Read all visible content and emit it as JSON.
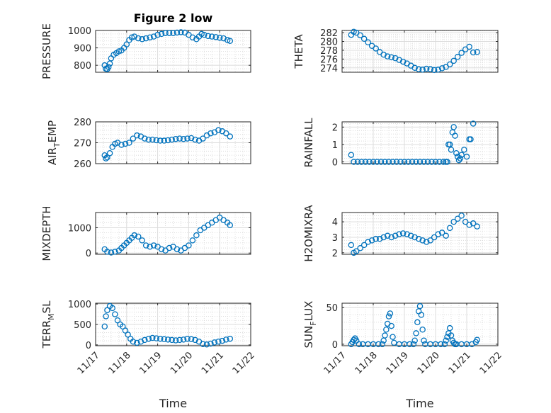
{
  "marker_color": "#0072BD",
  "figure_title": "Figure 2 low",
  "chart_data": [
    {
      "type": "scatter",
      "id": "pressure",
      "ylabel": "PRESSURE",
      "ylabel_sub": "",
      "title": "Figure 2 low",
      "ylim": [
        760,
        1000
      ],
      "yticks": [
        800,
        900,
        1000
      ],
      "xlim": [
        "11/17",
        "11/22"
      ],
      "xticks": [
        "11/17",
        "11/18",
        "11/19",
        "11/20",
        "11/21",
        "11/22"
      ],
      "xtick_labels_shown": false,
      "x": [
        "11/17 07:00",
        "11/17 08:00",
        "11/17 09:00",
        "11/17 10:00",
        "11/17 11:00",
        "11/17 12:00",
        "11/17 14:00",
        "11/17 16:00",
        "11/17 18:00",
        "11/17 20:00",
        "11/17 22:00",
        "11/18 00:00",
        "11/18 02:00",
        "11/18 04:00",
        "11/18 06:00",
        "11/18 09:00",
        "11/18 12:00",
        "11/18 15:00",
        "11/18 18:00",
        "11/18 21:00",
        "11/19 00:00",
        "11/19 03:00",
        "11/19 06:00",
        "11/19 09:00",
        "11/19 12:00",
        "11/19 15:00",
        "11/19 18:00",
        "11/19 21:00",
        "11/20 00:00",
        "11/20 03:00",
        "11/20 06:00",
        "11/20 08:00",
        "11/20 10:00",
        "11/20 12:00",
        "11/20 15:00",
        "11/20 18:00",
        "11/20 21:00",
        "11/21 00:00",
        "11/21 03:00",
        "11/21 06:00",
        "11/21 08:00"
      ],
      "y": [
        800,
        780,
        778,
        790,
        810,
        840,
        860,
        870,
        880,
        885,
        900,
        920,
        945,
        960,
        965,
        955,
        950,
        955,
        960,
        965,
        975,
        980,
        985,
        985,
        985,
        988,
        990,
        988,
        975,
        960,
        950,
        965,
        980,
        975,
        968,
        965,
        962,
        958,
        955,
        945,
        940
      ]
    },
    {
      "type": "scatter",
      "id": "theta",
      "ylabel": "THETA",
      "ylabel_sub": "",
      "ylim": [
        273,
        282.5
      ],
      "yticks": [
        274,
        276,
        278,
        280,
        282
      ],
      "xlim": [
        "11/17",
        "11/22"
      ],
      "xticks": [
        "11/17",
        "11/18",
        "11/19",
        "11/20",
        "11/21",
        "11/22"
      ],
      "xtick_labels_shown": false,
      "x": [
        "11/17 07:00",
        "11/17 09:00",
        "11/17 11:00",
        "11/17 14:00",
        "11/17 17:00",
        "11/17 20:00",
        "11/17 23:00",
        "11/18 02:00",
        "11/18 05:00",
        "11/18 08:00",
        "11/18 11:00",
        "11/18 14:00",
        "11/18 17:00",
        "11/18 20:00",
        "11/18 23:00",
        "11/19 02:00",
        "11/19 05:00",
        "11/19 08:00",
        "11/19 11:00",
        "11/19 14:00",
        "11/19 17:00",
        "11/19 20:00",
        "11/19 23:00",
        "11/20 02:00",
        "11/20 05:00",
        "11/20 08:00",
        "11/20 11:00",
        "11/20 14:00",
        "11/20 17:00",
        "11/20 20:00",
        "11/20 23:00",
        "11/21 02:00",
        "11/21 05:00",
        "11/21 08:00"
      ],
      "y": [
        281.5,
        282.2,
        282,
        281.4,
        280.6,
        279.8,
        279,
        278.4,
        277.6,
        277,
        276.6,
        276.4,
        276.2,
        275.8,
        275.4,
        275,
        274.5,
        274,
        273.7,
        273.6,
        273.8,
        273.7,
        273.5,
        273.6,
        273.9,
        274.2,
        274.8,
        275.6,
        276.5,
        277.4,
        278.2,
        278.8,
        277.5,
        277.6
      ]
    },
    {
      "type": "scatter",
      "id": "air_temp",
      "ylabel": "AIR",
      "ylabel_sub": "T",
      "ylabel_suffix": "EMP",
      "ylim": [
        260,
        280
      ],
      "yticks": [
        260,
        270,
        280
      ],
      "xlim": [
        "11/17",
        "11/22"
      ],
      "xticks": [
        "11/17",
        "11/18",
        "11/19",
        "11/20",
        "11/21",
        "11/22"
      ],
      "xtick_labels_shown": false,
      "x": [
        "11/17 07:00",
        "11/17 08:00",
        "11/17 09:00",
        "11/17 11:00",
        "11/17 13:00",
        "11/17 15:00",
        "11/17 17:00",
        "11/17 20:00",
        "11/17 23:00",
        "11/18 02:00",
        "11/18 05:00",
        "11/18 08:00",
        "11/18 11:00",
        "11/18 14:00",
        "11/18 17:00",
        "11/18 20:00",
        "11/18 23:00",
        "11/19 02:00",
        "11/19 05:00",
        "11/19 08:00",
        "11/19 11:00",
        "11/19 14:00",
        "11/19 17:00",
        "11/19 20:00",
        "11/19 23:00",
        "11/20 02:00",
        "11/20 05:00",
        "11/20 08:00",
        "11/20 11:00",
        "11/20 14:00",
        "11/20 17:00",
        "11/20 20:00",
        "11/20 23:00",
        "11/21 02:00",
        "11/21 05:00",
        "11/21 08:00"
      ],
      "y": [
        264,
        262.5,
        263,
        265,
        268,
        269.5,
        270,
        269,
        269.5,
        270,
        272,
        273.5,
        273,
        272,
        271.5,
        271.5,
        271.2,
        271,
        271,
        271.2,
        271.5,
        271.8,
        272,
        271.8,
        272,
        272.2,
        271.5,
        271,
        272,
        273.5,
        274.5,
        275,
        276,
        275.5,
        274.5,
        273
      ]
    },
    {
      "type": "scatter",
      "id": "rainfall",
      "ylabel": "RAINFALL",
      "ylabel_sub": "",
      "ylim": [
        -0.1,
        2.3
      ],
      "yticks": [
        0,
        1,
        2
      ],
      "xlim": [
        "11/17",
        "11/22"
      ],
      "xticks": [
        "11/17",
        "11/18",
        "11/19",
        "11/20",
        "11/21",
        "11/22"
      ],
      "xtick_labels_shown": false,
      "x": [
        "11/17 07:00",
        "11/17 09:00",
        "11/17 12:00",
        "11/17 15:00",
        "11/17 18:00",
        "11/17 21:00",
        "11/18 00:00",
        "11/18 03:00",
        "11/18 06:00",
        "11/18 09:00",
        "11/18 12:00",
        "11/18 15:00",
        "11/18 18:00",
        "11/18 21:00",
        "11/19 00:00",
        "11/19 03:00",
        "11/19 06:00",
        "11/19 09:00",
        "11/19 12:00",
        "11/19 15:00",
        "11/19 18:00",
        "11/19 21:00",
        "11/20 00:00",
        "11/20 03:00",
        "11/20 06:00",
        "11/20 08:00",
        "11/20 09:00",
        "11/20 10:00",
        "11/20 11:00",
        "11/20 12:00",
        "11/20 13:00",
        "11/20 14:00",
        "11/20 15:00",
        "11/20 16:00",
        "11/20 17:00",
        "11/20 18:00",
        "11/20 19:00",
        "11/20 20:00",
        "11/20 22:00",
        "11/21 00:00",
        "11/21 02:00",
        "11/21 03:00",
        "11/21 05:00"
      ],
      "y": [
        0.4,
        0,
        0,
        0,
        0,
        0,
        0,
        0,
        0,
        0,
        0,
        0,
        0,
        0,
        0,
        0,
        0,
        0,
        0,
        0,
        0,
        0,
        0,
        0,
        0,
        0,
        0,
        1,
        1,
        0.7,
        1.7,
        2,
        1.5,
        0.5,
        0.3,
        0.1,
        0.2,
        0.4,
        0.7,
        0.3,
        1.3,
        1.3,
        2.2
      ]
    },
    {
      "type": "scatter",
      "id": "mixdepth",
      "ylabel": "MIXDEPTH",
      "ylabel_sub": "",
      "ylim": [
        -50,
        1600
      ],
      "yticks": [
        0,
        1000
      ],
      "xlim": [
        "11/17",
        "11/22"
      ],
      "xticks": [
        "11/17",
        "11/18",
        "11/19",
        "11/20",
        "11/21",
        "11/22"
      ],
      "xtick_labels_shown": false,
      "x": [
        "11/17 07:00",
        "11/17 09:00",
        "11/17 12:00",
        "11/17 15:00",
        "11/17 18:00",
        "11/17 20:00",
        "11/17 22:00",
        "11/18 00:00",
        "11/18 02:00",
        "11/18 04:00",
        "11/18 06:00",
        "11/18 09:00",
        "11/18 12:00",
        "11/18 15:00",
        "11/18 18:00",
        "11/18 21:00",
        "11/19 00:00",
        "11/19 03:00",
        "11/19 06:00",
        "11/19 09:00",
        "11/19 12:00",
        "11/19 15:00",
        "11/19 18:00",
        "11/19 21:00",
        "11/20 00:00",
        "11/20 03:00",
        "11/20 06:00",
        "11/20 09:00",
        "11/20 12:00",
        "11/20 15:00",
        "11/20 18:00",
        "11/20 21:00",
        "11/21 00:00",
        "11/21 03:00",
        "11/21 06:00",
        "11/21 08:00"
      ],
      "y": [
        150,
        50,
        20,
        50,
        100,
        200,
        300,
        400,
        500,
        600,
        700,
        650,
        500,
        300,
        250,
        300,
        250,
        150,
        100,
        200,
        250,
        150,
        100,
        200,
        300,
        500,
        700,
        900,
        1000,
        1100,
        1200,
        1300,
        1400,
        1300,
        1200,
        1100
      ]
    },
    {
      "type": "scatter",
      "id": "h2omixra",
      "ylabel": "H2OMIXRA",
      "ylabel_sub": "",
      "ylim": [
        1.9,
        4.6
      ],
      "yticks": [
        2,
        3,
        4
      ],
      "xlim": [
        "11/17",
        "11/22"
      ],
      "xticks": [
        "11/17",
        "11/18",
        "11/19",
        "11/20",
        "11/21",
        "11/22"
      ],
      "xtick_labels_shown": false,
      "x": [
        "11/17 07:00",
        "11/17 09:00",
        "11/17 11:00",
        "11/17 14:00",
        "11/17 17:00",
        "11/17 20:00",
        "11/17 23:00",
        "11/18 02:00",
        "11/18 05:00",
        "11/18 08:00",
        "11/18 11:00",
        "11/18 14:00",
        "11/18 17:00",
        "11/18 20:00",
        "11/18 23:00",
        "11/19 02:00",
        "11/19 05:00",
        "11/19 08:00",
        "11/19 11:00",
        "11/19 14:00",
        "11/19 17:00",
        "11/19 20:00",
        "11/19 23:00",
        "11/20 02:00",
        "11/20 05:00",
        "11/20 08:00",
        "11/20 11:00",
        "11/20 14:00",
        "11/20 17:00",
        "11/20 20:00",
        "11/20 23:00",
        "11/21 02:00",
        "11/21 05:00",
        "11/21 08:00"
      ],
      "y": [
        2.5,
        2,
        2.1,
        2.3,
        2.5,
        2.7,
        2.8,
        2.9,
        2.9,
        3,
        3.1,
        3,
        3.1,
        3.2,
        3.25,
        3.2,
        3.1,
        3,
        2.9,
        2.8,
        2.7,
        2.8,
        3,
        3.2,
        3.3,
        3.1,
        3.6,
        4,
        4.2,
        4.4,
        4,
        3.8,
        3.9,
        3.7
      ]
    },
    {
      "type": "scatter",
      "id": "terr_msl",
      "ylabel": "TERR",
      "ylabel_sub": "M",
      "ylabel_suffix": "SL",
      "ylim": [
        -20,
        1020
      ],
      "yticks": [
        0,
        500,
        1000
      ],
      "xlim": [
        "11/17",
        "11/22"
      ],
      "xticks": [
        "11/17",
        "11/18",
        "11/19",
        "11/20",
        "11/21",
        "11/22"
      ],
      "xtick_labels": [
        "11/17",
        "11/18",
        "11/19",
        "11/20",
        "11/21",
        "11/22"
      ],
      "xtick_labels_shown": true,
      "xlabel": "Time",
      "x": [
        "11/17 07:00",
        "11/17 08:00",
        "11/17 09:00",
        "11/17 11:00",
        "11/17 13:00",
        "11/17 15:00",
        "11/17 17:00",
        "11/17 19:00",
        "11/17 21:00",
        "11/17 23:00",
        "11/18 01:00",
        "11/18 03:00",
        "11/18 05:00",
        "11/18 08:00",
        "11/18 11:00",
        "11/18 14:00",
        "11/18 17:00",
        "11/18 20:00",
        "11/18 23:00",
        "11/19 02:00",
        "11/19 05:00",
        "11/19 08:00",
        "11/19 11:00",
        "11/19 14:00",
        "11/19 17:00",
        "11/19 20:00",
        "11/19 23:00",
        "11/20 02:00",
        "11/20 05:00",
        "11/20 08:00",
        "11/20 11:00",
        "11/20 14:00",
        "11/20 17:00",
        "11/20 20:00",
        "11/20 23:00",
        "11/21 02:00",
        "11/21 05:00",
        "11/21 08:00"
      ],
      "y": [
        450,
        700,
        850,
        950,
        900,
        750,
        600,
        500,
        450,
        350,
        250,
        150,
        80,
        50,
        80,
        120,
        150,
        170,
        160,
        150,
        140,
        130,
        120,
        110,
        120,
        130,
        150,
        140,
        120,
        80,
        20,
        10,
        30,
        60,
        80,
        100,
        130,
        150
      ]
    },
    {
      "type": "scatter",
      "id": "sun_flux",
      "ylabel": "SUN",
      "ylabel_sub": "F",
      "ylabel_suffix": "LUX",
      "ylim": [
        -2,
        56
      ],
      "yticks": [
        0,
        50
      ],
      "xlim": [
        "11/17",
        "11/22"
      ],
      "xticks": [
        "11/17",
        "11/18",
        "11/19",
        "11/20",
        "11/21",
        "11/22"
      ],
      "xtick_labels": [
        "11/17",
        "11/18",
        "11/19",
        "11/20",
        "11/21",
        "11/22"
      ],
      "xtick_labels_shown": true,
      "xlabel": "Time",
      "x": [
        "11/17 07:00",
        "11/17 08:00",
        "11/17 09:00",
        "11/17 10:00",
        "11/17 11:00",
        "11/17 13:00",
        "11/17 16:00",
        "11/17 20:00",
        "11/18 00:00",
        "11/18 04:00",
        "11/18 07:00",
        "11/18 08:00",
        "11/18 09:00",
        "11/18 10:00",
        "11/18 11:00",
        "11/18 12:00",
        "11/18 13:00",
        "11/18 14:00",
        "11/18 15:00",
        "11/18 16:00",
        "11/18 20:00",
        "11/19 00:00",
        "11/19 04:00",
        "11/19 07:00",
        "11/19 08:00",
        "11/19 09:00",
        "11/19 10:00",
        "11/19 11:00",
        "11/19 12:00",
        "11/19 13:00",
        "11/19 14:00",
        "11/19 15:00",
        "11/19 16:00",
        "11/19 20:00",
        "11/20 00:00",
        "11/20 04:00",
        "11/20 07:00",
        "11/20 08:00",
        "11/20 09:00",
        "11/20 10:00",
        "11/20 11:00",
        "11/20 12:00",
        "11/20 13:00",
        "11/20 14:00",
        "11/20 15:00",
        "11/20 16:00",
        "11/20 20:00",
        "11/21 00:00",
        "11/21 04:00",
        "11/21 07:00",
        "11/21 08:00"
      ],
      "y": [
        0,
        3,
        6,
        8,
        5,
        0,
        0,
        0,
        0,
        0,
        0,
        5,
        12,
        20,
        28,
        38,
        42,
        25,
        10,
        2,
        0,
        0,
        0,
        0,
        5,
        15,
        30,
        45,
        52,
        40,
        20,
        5,
        0,
        0,
        0,
        0,
        0,
        5,
        10,
        15,
        22,
        12,
        5,
        2,
        0,
        0,
        0,
        0,
        0,
        3,
        6
      ]
    }
  ]
}
